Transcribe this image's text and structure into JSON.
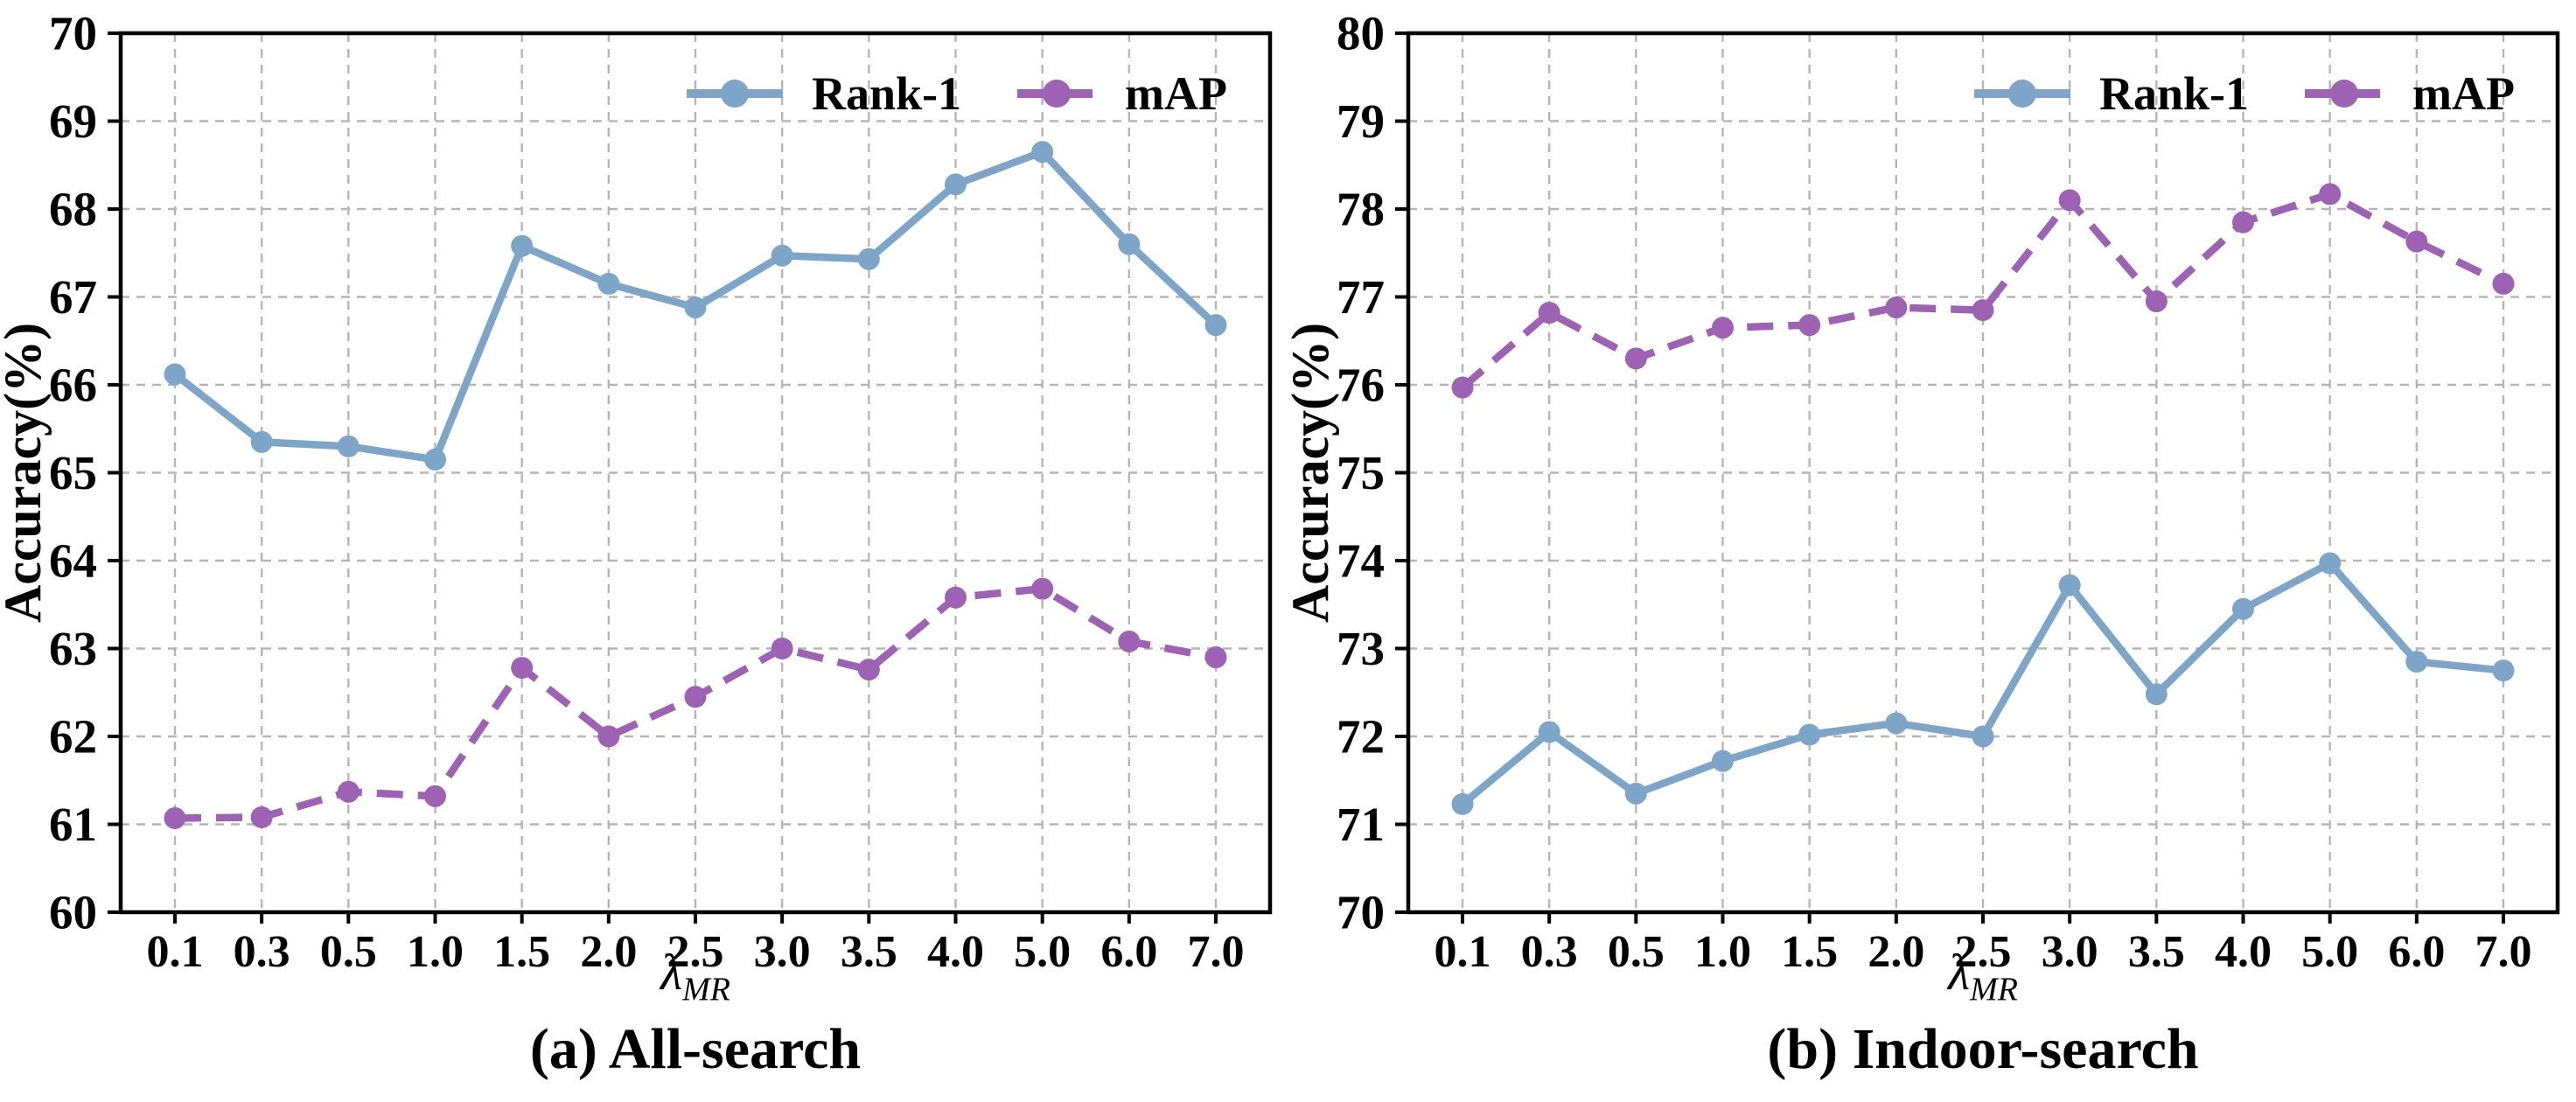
{
  "style": {
    "background": "#ffffff",
    "grid_color": "#b5b5b5",
    "axis_color": "#000000",
    "rank1_color": "#7CA5C8",
    "map_color": "#9E62B4"
  },
  "legend": {
    "rank1_label": "Rank-1",
    "map_label": "mAP"
  },
  "chart_data": [
    {
      "type": "line",
      "title": "(a) All-search",
      "ylabel": "Accuracy(%)",
      "xlabel": {
        "symbol": "λ",
        "subscript": "MR"
      },
      "ylim": [
        60,
        70
      ],
      "yticks": [
        60,
        61,
        62,
        63,
        64,
        65,
        66,
        67,
        68,
        69,
        70
      ],
      "grid": true,
      "legend_position": "top-inside-right",
      "categories": [
        "0.1",
        "0.3",
        "0.5",
        "1.0",
        "1.5",
        "2.0",
        "2.5",
        "3.0",
        "3.5",
        "4.0",
        "5.0",
        "6.0",
        "7.0"
      ],
      "series": [
        {
          "name": "Rank-1",
          "style": "solid",
          "color": "#7CA5C8",
          "values": [
            66.12,
            65.35,
            65.3,
            65.15,
            67.58,
            67.15,
            66.88,
            67.47,
            67.43,
            68.28,
            68.65,
            67.6,
            66.68
          ]
        },
        {
          "name": "mAP",
          "style": "dashed",
          "color": "#9E62B4",
          "values": [
            61.07,
            61.08,
            61.37,
            61.32,
            62.78,
            62.0,
            62.45,
            63.0,
            62.76,
            63.58,
            63.68,
            63.08,
            62.9
          ]
        }
      ]
    },
    {
      "type": "line",
      "title": "(b) Indoor-search",
      "ylabel": "Accuracy(%)",
      "xlabel": {
        "symbol": "λ",
        "subscript": "MR"
      },
      "ylim": [
        70,
        80
      ],
      "yticks": [
        70,
        71,
        72,
        73,
        74,
        75,
        76,
        77,
        78,
        79,
        80
      ],
      "grid": true,
      "legend_position": "top-inside-right",
      "categories": [
        "0.1",
        "0.3",
        "0.5",
        "1.0",
        "1.5",
        "2.0",
        "2.5",
        "3.0",
        "3.5",
        "4.0",
        "5.0",
        "6.0",
        "7.0"
      ],
      "series": [
        {
          "name": "Rank-1",
          "style": "solid",
          "color": "#7CA5C8",
          "values": [
            71.23,
            72.05,
            71.35,
            71.72,
            72.02,
            72.15,
            72.0,
            73.72,
            72.48,
            73.45,
            73.97,
            72.85,
            72.75
          ]
        },
        {
          "name": "mAP",
          "style": "dashed",
          "color": "#9E62B4",
          "values": [
            75.97,
            76.82,
            76.3,
            76.65,
            76.68,
            76.88,
            76.85,
            78.1,
            76.95,
            77.85,
            78.17,
            77.63,
            77.15
          ]
        }
      ]
    }
  ]
}
